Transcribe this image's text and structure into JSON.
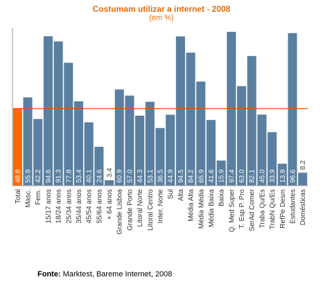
{
  "chart_data": {
    "type": "bar",
    "title": "Costumam utilizar a internet  - 2008",
    "subtitle": "(em %)",
    "ylim": [
      0,
      100
    ],
    "categories": [
      "Total",
      "Masc.",
      "Fem.",
      "15/17 anos",
      "18/24 anos",
      "25/34 anos",
      "35/44 anos",
      "45/54 anos",
      "55/64 anos",
      "+ 64 anos",
      "Grande Lisboa",
      "Grande Porto",
      "Litoral Norte",
      "Litoral Centro",
      "Inter. Norte",
      "Sul",
      "Alta",
      "Média Alta",
      "Média Média",
      "Média Baixa",
      "Baixa",
      "Q. Med Super",
      "T. Esp P. Pro",
      "SerAd Comer",
      "Traba Qu/Es",
      "TrabN Qu/Es",
      "RefPe Desm",
      "Estudantes",
      "Domésticas"
    ],
    "values": [
      48.8,
      55.9,
      42.2,
      94.6,
      91.3,
      77.8,
      53.4,
      40.1,
      24.6,
      3.4,
      60.9,
      57.0,
      44.3,
      53.1,
      36.5,
      44.9,
      94.5,
      84.2,
      65.9,
      41.6,
      15.9,
      97.4,
      63.0,
      82.1,
      45.0,
      33.9,
      13.9,
      96.6,
      8.2
    ],
    "value_labels": [
      "48.8",
      "55.9",
      "42.2",
      "94.6",
      "91.3",
      "77.8",
      "53.4",
      "40.1",
      "24.6",
      "3.4",
      "60.9",
      "57.0",
      "44.3",
      "53.1",
      "36.5",
      "44.9",
      "94.5",
      "84.2",
      "65.9",
      "41.6",
      "15.9",
      "97.4",
      "63.0",
      "82.1",
      "45.0",
      "33.9",
      "13.9",
      "96.6",
      "8.2"
    ],
    "highlight_index": 0,
    "reference_line_value": 48.8,
    "colors": {
      "bar": "#5a7fa0",
      "highlight_bar": "#ff6a00",
      "reference_line": "#e8500a",
      "label_inside": "#ffffff",
      "label_outside": "#444444",
      "title": "#e36c09"
    },
    "grid": false
  },
  "source": {
    "prefix": "Fonte:",
    "text": " Marktest, Bareme Internet, 2008"
  }
}
